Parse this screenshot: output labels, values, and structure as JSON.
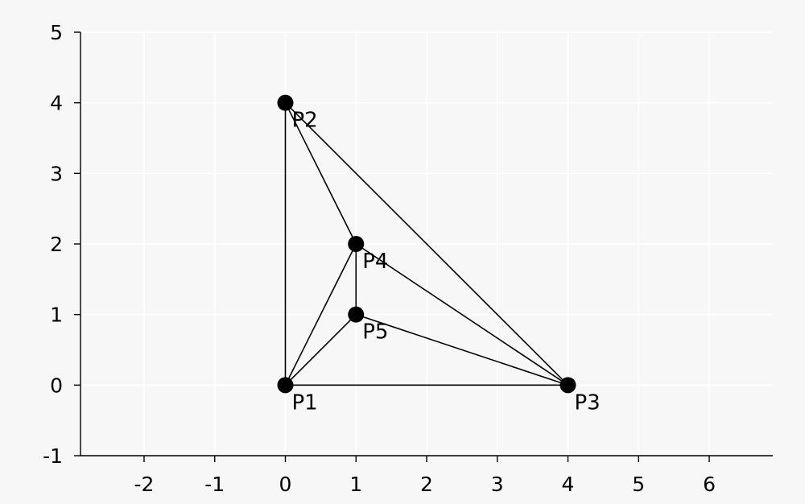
{
  "chart_data": {
    "type": "scatter",
    "title": "",
    "xlabel": "",
    "ylabel": "",
    "xlim": [
      -2.9,
      6.9
    ],
    "ylim": [
      -1,
      5
    ],
    "x_ticks": [
      "-2",
      "-1",
      "0",
      "1",
      "2",
      "3",
      "4",
      "5",
      "6"
    ],
    "y_ticks": [
      "-1",
      "0",
      "1",
      "2",
      "3",
      "4",
      "5"
    ],
    "grid": true,
    "points": [
      {
        "label": "P1",
        "x": 0,
        "y": 0
      },
      {
        "label": "P2",
        "x": 0,
        "y": 4
      },
      {
        "label": "P3",
        "x": 4,
        "y": 0
      },
      {
        "label": "P4",
        "x": 1,
        "y": 2
      },
      {
        "label": "P5",
        "x": 1,
        "y": 1
      }
    ],
    "edges": [
      [
        "P1",
        "P2"
      ],
      [
        "P1",
        "P3"
      ],
      [
        "P2",
        "P3"
      ],
      [
        "P2",
        "P4"
      ],
      [
        "P1",
        "P4"
      ],
      [
        "P4",
        "P5"
      ],
      [
        "P1",
        "P5"
      ],
      [
        "P4",
        "P3"
      ],
      [
        "P5",
        "P3"
      ]
    ]
  }
}
